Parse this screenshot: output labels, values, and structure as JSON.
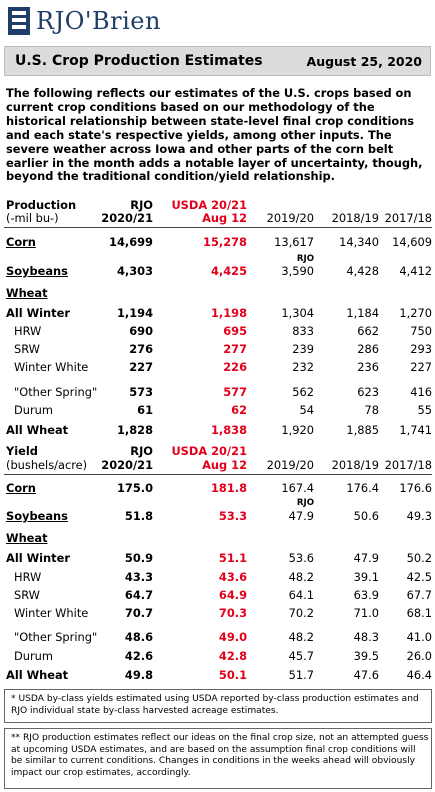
{
  "brand": {
    "name": "RJO'Brien"
  },
  "header": {
    "title": "U.S. Crop Production Estimates",
    "date": "August 25, 2020"
  },
  "intro": "The following reflects our estimates of the U.S. crops based on current crop conditions based on our methodology of the historical relationship between state-level final crop conditions and each state's respective yields, among other inputs. The severe weather across Iowa and other parts of the corn belt earlier in the month adds a notable layer of uncertainty, though, beyond the traditional condition/yield relationship.",
  "production": {
    "head": {
      "label1": "Production",
      "label2": "(-mil bu-)",
      "c1a": "RJO",
      "c1b": "2020/21",
      "c2a": "USDA 20/21",
      "c2b": "Aug 12",
      "c3": "2019/20",
      "c4": "2018/19",
      "c5": "2017/18"
    },
    "corn": {
      "label": "Corn",
      "rjo": "14,699",
      "usda": "15,278",
      "y19": "13,617",
      "y18": "14,340",
      "y17": "14,609"
    },
    "rjo_small": "RJO",
    "soy": {
      "label": "Soybeans",
      "rjo": "4,303",
      "usda": "4,425",
      "y19": "3,590",
      "y18": "4,428",
      "y17": "4,412"
    },
    "wheat_label": "Wheat",
    "all_winter": {
      "label": "All Winter",
      "rjo": "1,194",
      "usda": "1,198",
      "y19": "1,304",
      "y18": "1,184",
      "y17": "1,270"
    },
    "hrw": {
      "label": "HRW",
      "rjo": "690",
      "usda": "695",
      "y19": "833",
      "y18": "662",
      "y17": "750"
    },
    "srw": {
      "label": "SRW",
      "rjo": "276",
      "usda": "277",
      "y19": "239",
      "y18": "286",
      "y17": "293"
    },
    "ww": {
      "label": "Winter White",
      "rjo": "227",
      "usda": "226",
      "y19": "232",
      "y18": "236",
      "y17": "227"
    },
    "os": {
      "label": "\"Other Spring\"",
      "rjo": "573",
      "usda": "577",
      "y19": "562",
      "y18": "623",
      "y17": "416"
    },
    "durum": {
      "label": "Durum",
      "rjo": "61",
      "usda": "62",
      "y19": "54",
      "y18": "78",
      "y17": "55"
    },
    "all_wheat": {
      "label": "All Wheat",
      "rjo": "1,828",
      "usda": "1,838",
      "y19": "1,920",
      "y18": "1,885",
      "y17": "1,741"
    }
  },
  "yield": {
    "head": {
      "label1": "Yield",
      "label2": "(bushels/acre)",
      "c1a": "RJO",
      "c1b": "2020/21",
      "c2a": "USDA 20/21",
      "c2b": "Aug 12",
      "c3": "2019/20",
      "c4": "2018/19",
      "c5": "2017/18"
    },
    "corn": {
      "label": "Corn",
      "rjo": "175.0",
      "usda": "181.8",
      "y19": "167.4",
      "y18": "176.4",
      "y17": "176.6"
    },
    "rjo_small": "RJO",
    "soy": {
      "label": "Soybeans",
      "rjo": "51.8",
      "usda": "53.3",
      "y19": "47.9",
      "y18": "50.6",
      "y17": "49.3"
    },
    "wheat_label": "Wheat",
    "all_winter": {
      "label": "All Winter",
      "rjo": "50.9",
      "usda": "51.1",
      "y19": "53.6",
      "y18": "47.9",
      "y17": "50.2"
    },
    "hrw": {
      "label": "HRW",
      "rjo": "43.3",
      "usda": "43.6",
      "y19": "48.2",
      "y18": "39.1",
      "y17": "42.5"
    },
    "srw": {
      "label": "SRW",
      "rjo": "64.7",
      "usda": "64.9",
      "y19": "64.1",
      "y18": "63.9",
      "y17": "67.7"
    },
    "ww": {
      "label": "Winter White",
      "rjo": "70.7",
      "usda": "70.3",
      "y19": "70.2",
      "y18": "71.0",
      "y17": "68.1"
    },
    "os": {
      "label": "\"Other Spring\"",
      "rjo": "48.6",
      "usda": "49.0",
      "y19": "48.2",
      "y18": "48.3",
      "y17": "41.0"
    },
    "durum": {
      "label": "Durum",
      "rjo": "42.6",
      "usda": "42.8",
      "y19": "45.7",
      "y18": "39.5",
      "y17": "26.0"
    },
    "all_wheat": {
      "label": "All Wheat",
      "rjo": "49.8",
      "usda": "50.1",
      "y19": "51.7",
      "y18": "47.6",
      "y17": "46.4"
    }
  },
  "notes": {
    "n1": "* USDA by-class yields estimated using USDA reported by-class production estimates and RJO individual state by-class harvested acreage estimates.",
    "n2": "** RJO production estimates reflect our ideas on the final crop size, not an attempted guess at upcoming USDA estimates, and are based on the assumption final crop conditions will be similar to current conditions. Changes in conditions in the weeks ahead will obviously impact our crop estimates, accordingly."
  }
}
